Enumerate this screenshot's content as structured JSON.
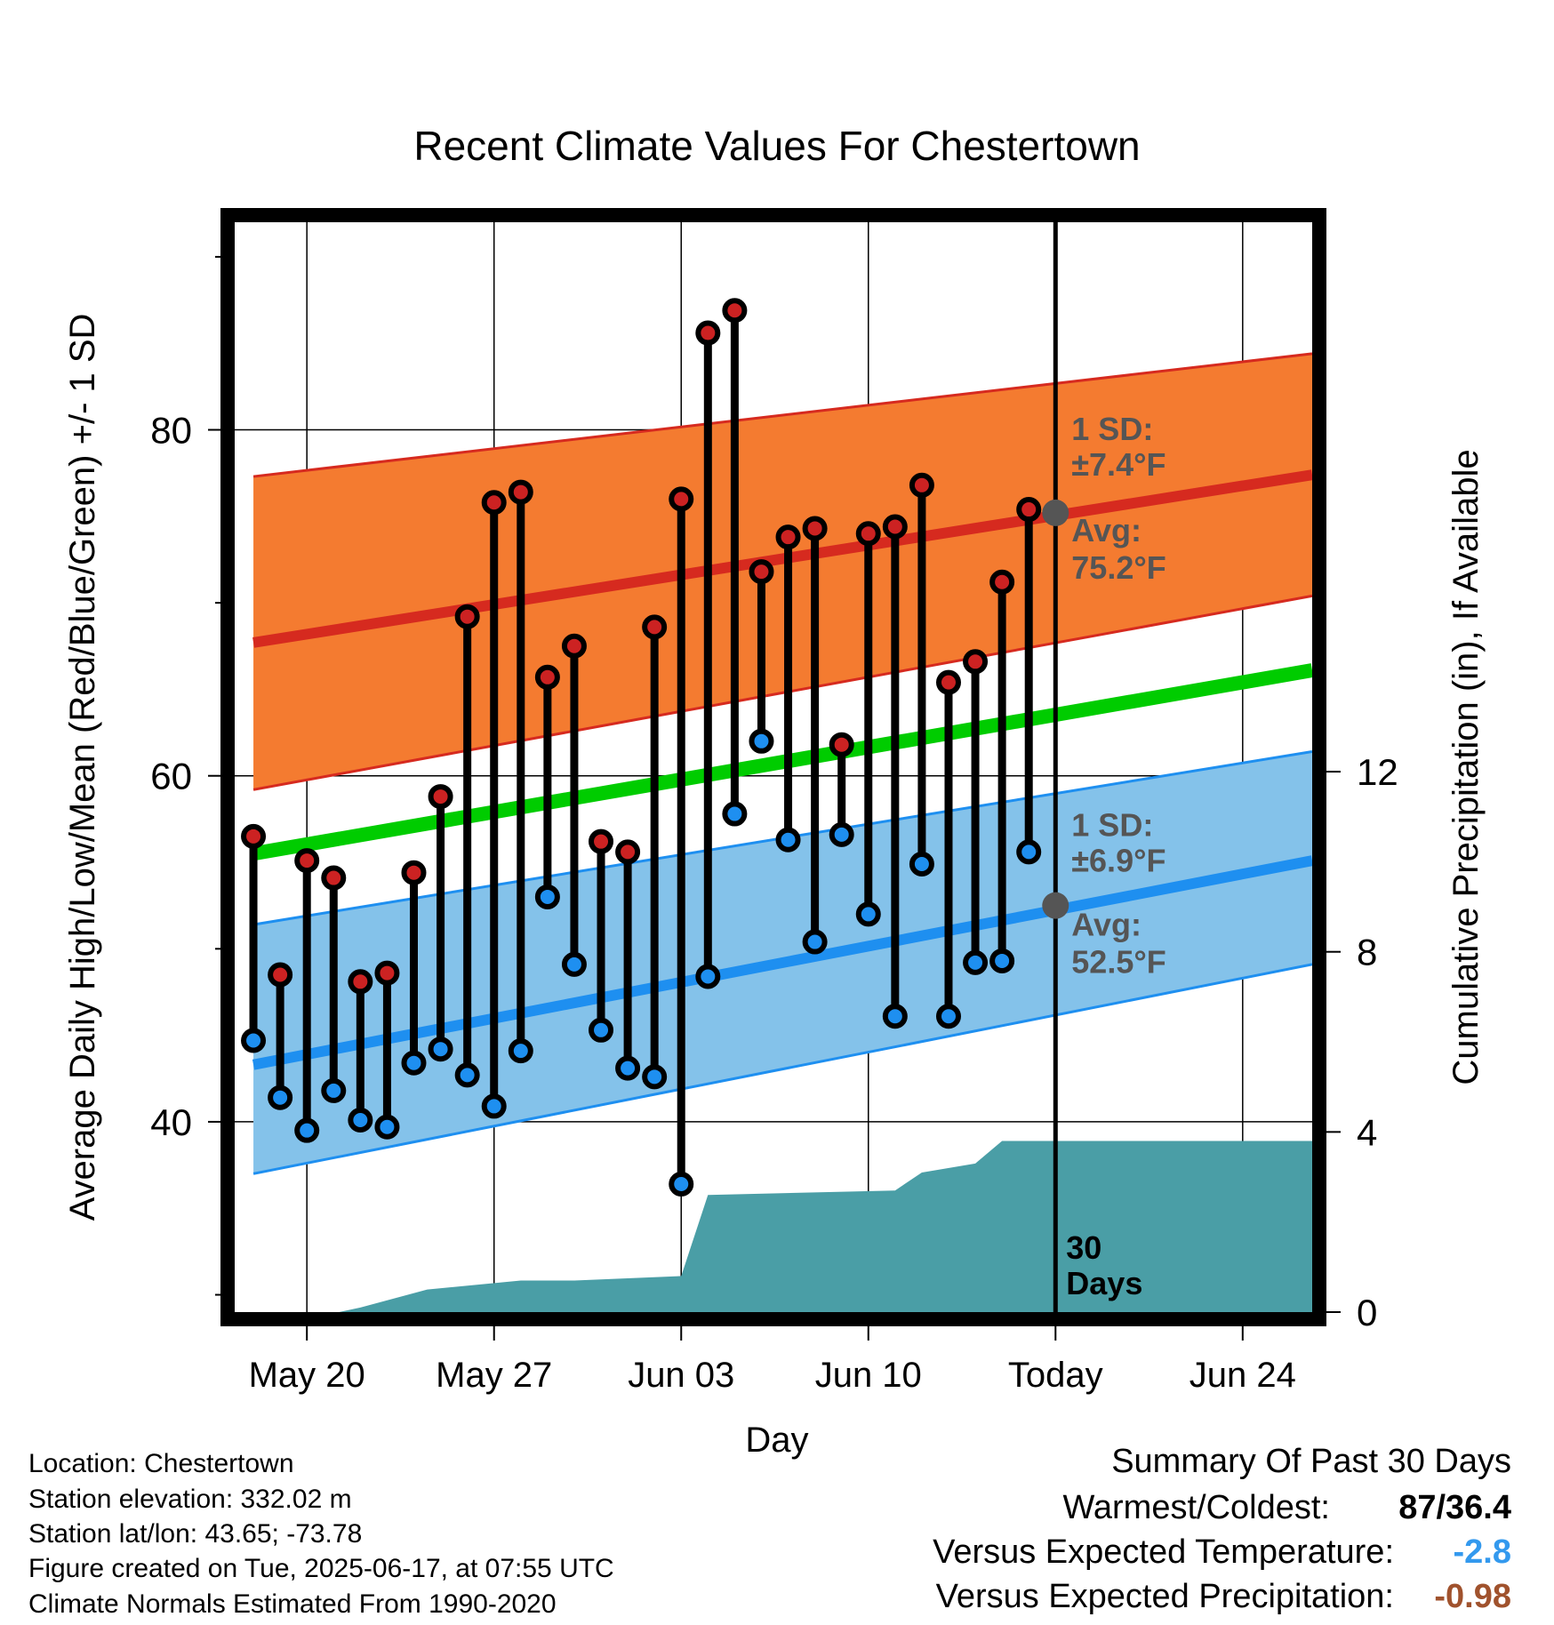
{
  "chart_data": {
    "type": "line",
    "title": "Recent Climate Values For Chestertown",
    "xlabel": "Day",
    "ylabel_left": "Average Daily High/Low/Mean (Red/Blue/Green) +/- 1 SD",
    "ylabel_right": "Cumulative Precipitation (in), If Available",
    "x_ticks": [
      "May 20",
      "May 27",
      "Jun 03",
      "Jun 10",
      "Today",
      "Jun 24"
    ],
    "y_left_ticks": [
      40,
      60,
      80
    ],
    "y_left_range": [
      29,
      92
    ],
    "y_right_ticks": [
      0,
      4,
      8,
      12
    ],
    "y_right_range": [
      0,
      24.2
    ],
    "x_range_days_from_may20": [
      -2.7,
      37.6
    ],
    "grid": true,
    "normals": {
      "high_mean": {
        "start": 67.7,
        "end": 77.4
      },
      "high_sd_band": {
        "start_low": 59.2,
        "start_high": 77.3,
        "end_low": 70.4,
        "end_high": 84.4
      },
      "mean_line": {
        "start": 55.5,
        "end": 66.1
      },
      "low_mean": {
        "start": 43.3,
        "end": 55.1
      },
      "low_sd_band": {
        "start_low": 37.0,
        "start_high": 51.4,
        "end_low": 49.1,
        "end_high": 61.4
      }
    },
    "annotations": {
      "high_sd_label": "1 SD:",
      "high_sd_value": "±7.4°F",
      "high_avg_label": "Avg:",
      "high_avg_value": "75.2°F",
      "high_avg": 75.2,
      "low_sd_label": "1 SD:",
      "low_sd_value": "±6.9°F",
      "low_avg_label": "Avg:",
      "low_avg_value": "52.5°F",
      "low_avg": 52.5,
      "period_label_1": "30",
      "period_label_2": "Days"
    },
    "daily": [
      {
        "high": 56.5,
        "low": 44.7
      },
      {
        "high": 48.5,
        "low": 41.4
      },
      {
        "high": 55.1,
        "low": 39.5
      },
      {
        "high": 54.1,
        "low": 41.8
      },
      {
        "high": 48.1,
        "low": 40.1
      },
      {
        "high": 48.6,
        "low": 39.7
      },
      {
        "high": 54.4,
        "low": 43.4
      },
      {
        "high": 58.8,
        "low": 44.2
      },
      {
        "high": 69.2,
        "low": 42.7
      },
      {
        "high": 75.8,
        "low": 40.9
      },
      {
        "high": 76.4,
        "low": 44.1
      },
      {
        "high": 65.7,
        "low": 53.0
      },
      {
        "high": 67.5,
        "low": 49.1
      },
      {
        "high": 56.2,
        "low": 45.3
      },
      {
        "high": 55.6,
        "low": 43.1
      },
      {
        "high": 68.6,
        "low": 42.6
      },
      {
        "high": 76.0,
        "low": 36.4
      },
      {
        "high": 85.6,
        "low": 48.4
      },
      {
        "high": 86.9,
        "low": 57.8
      },
      {
        "high": 71.8,
        "low": 62.0
      },
      {
        "high": 73.8,
        "low": 56.3
      },
      {
        "high": 74.3,
        "low": 50.4
      },
      {
        "high": 61.8,
        "low": 56.6
      },
      {
        "high": 74.0,
        "low": 52.0
      },
      {
        "high": 74.4,
        "low": 46.1
      },
      {
        "high": 76.8,
        "low": 54.9
      },
      {
        "high": 65.4,
        "low": 46.1
      },
      {
        "high": 66.6,
        "low": 49.2
      },
      {
        "high": 71.2,
        "low": 49.3
      },
      {
        "high": 75.4,
        "low": 55.6
      }
    ],
    "cumulative_precip": [
      {
        "day": 1.2,
        "value": 0.0
      },
      {
        "day": 2.0,
        "value": 0.1
      },
      {
        "day": 4.5,
        "value": 0.5
      },
      {
        "day": 8.0,
        "value": 0.7
      },
      {
        "day": 10.0,
        "value": 0.7
      },
      {
        "day": 14.0,
        "value": 0.8
      },
      {
        "day": 15.0,
        "value": 2.6
      },
      {
        "day": 22.0,
        "value": 2.7
      },
      {
        "day": 23.0,
        "value": 3.1
      },
      {
        "day": 25.0,
        "value": 3.3
      },
      {
        "day": 26.0,
        "value": 3.8
      },
      {
        "day": 37.6,
        "value": 3.8
      }
    ]
  },
  "info": {
    "location": "Location: Chestertown",
    "elevation": "Station elevation: 332.02 m",
    "latlon": "Station lat/lon: 43.65; -73.78",
    "created": "Figure created on Tue, 2025-06-17, at 07:55 UTC",
    "normals": "Climate Normals Estimated From 1990-2020"
  },
  "summary": {
    "title": "Summary Of Past 30 Days",
    "warm_cold_label": "Warmest/Coldest:",
    "warm_cold_value": "87/36.4",
    "temp_label": "Versus Expected Temperature:",
    "temp_value": "-2.8",
    "precip_label": "Versus Expected Precipitation:",
    "precip_value": "-0.98"
  },
  "colors": {
    "high_band": "#f47b30",
    "high_line": "#d62a1f",
    "mean_line": "#00cc00",
    "low_band": "#84c2ea",
    "low_line": "#1e8ff0",
    "precip": "#4a9ea6",
    "high_dot": "#cc2222",
    "low_dot": "#1e8ff0",
    "avg_dot": "#555555",
    "annotation_text": "#555555",
    "temp_value": "#3399ee",
    "precip_value": "#a0522d"
  }
}
